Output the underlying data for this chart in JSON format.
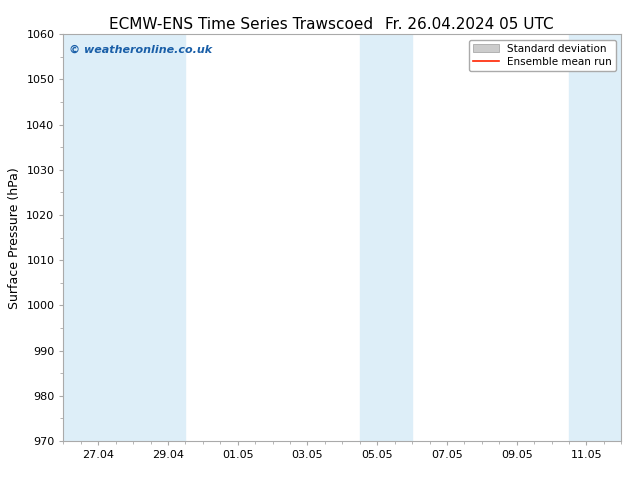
{
  "title_left": "ECMW-ENS Time Series Trawscoed",
  "title_right": "Fr. 26.04.2024 05 UTC",
  "ylabel": "Surface Pressure (hPa)",
  "ylim": [
    970,
    1060
  ],
  "yticks": [
    970,
    980,
    990,
    1000,
    1010,
    1020,
    1030,
    1040,
    1050,
    1060
  ],
  "xtick_positions": [
    1,
    3,
    5,
    7,
    9,
    11,
    13,
    15
  ],
  "xtick_labels": [
    "27.04",
    "29.04",
    "01.05",
    "03.05",
    "05.05",
    "07.05",
    "09.05",
    "11.05"
  ],
  "xlim": [
    0,
    16
  ],
  "shaded_ranges": [
    [
      0.0,
      3.5
    ],
    [
      8.5,
      10.5
    ],
    [
      14.5,
      16.0
    ]
  ],
  "shade_color": "#ddeef8",
  "watermark_text": "© weatheronline.co.uk",
  "watermark_color": "#1a5fa8",
  "legend_std_label": "Standard deviation",
  "legend_mean_label": "Ensemble mean run",
  "legend_std_color": "#cccccc",
  "legend_std_edge": "#aaaaaa",
  "legend_mean_color": "#ff2200",
  "bg_color": "#ffffff",
  "spine_color": "#aaaaaa",
  "tick_color": "#000000",
  "title_fontsize": 11,
  "tick_fontsize": 8,
  "ylabel_fontsize": 9,
  "watermark_fontsize": 8,
  "legend_fontsize": 7.5
}
